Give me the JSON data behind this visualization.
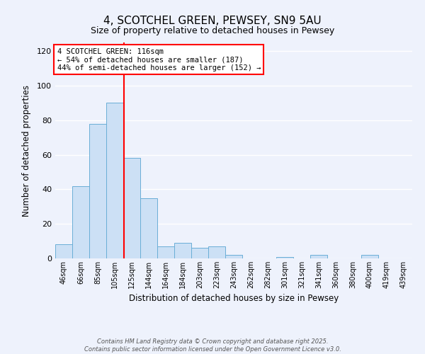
{
  "title": "4, SCOTCHEL GREEN, PEWSEY, SN9 5AU",
  "subtitle": "Size of property relative to detached houses in Pewsey",
  "xlabel": "Distribution of detached houses by size in Pewsey",
  "ylabel": "Number of detached properties",
  "categories": [
    "46sqm",
    "66sqm",
    "85sqm",
    "105sqm",
    "125sqm",
    "144sqm",
    "164sqm",
    "184sqm",
    "203sqm",
    "223sqm",
    "243sqm",
    "262sqm",
    "282sqm",
    "301sqm",
    "321sqm",
    "341sqm",
    "360sqm",
    "380sqm",
    "400sqm",
    "419sqm",
    "439sqm"
  ],
  "values": [
    8,
    42,
    78,
    90,
    58,
    35,
    7,
    9,
    6,
    7,
    2,
    0,
    0,
    1,
    0,
    2,
    0,
    0,
    2,
    0,
    0
  ],
  "bar_color": "#cce0f5",
  "bar_edge_color": "#6aaed6",
  "ylim": [
    0,
    125
  ],
  "yticks": [
    0,
    20,
    40,
    60,
    80,
    100,
    120
  ],
  "red_line_x": 3.55,
  "annotation_title": "4 SCOTCHEL GREEN: 116sqm",
  "annotation_line1": "← 54% of detached houses are smaller (187)",
  "annotation_line2": "44% of semi-detached houses are larger (152) →",
  "footer_line1": "Contains HM Land Registry data © Crown copyright and database right 2025.",
  "footer_line2": "Contains public sector information licensed under the Open Government Licence v3.0.",
  "background_color": "#eef2fc",
  "grid_color": "#ffffff",
  "title_fontsize": 11,
  "subtitle_fontsize": 9
}
